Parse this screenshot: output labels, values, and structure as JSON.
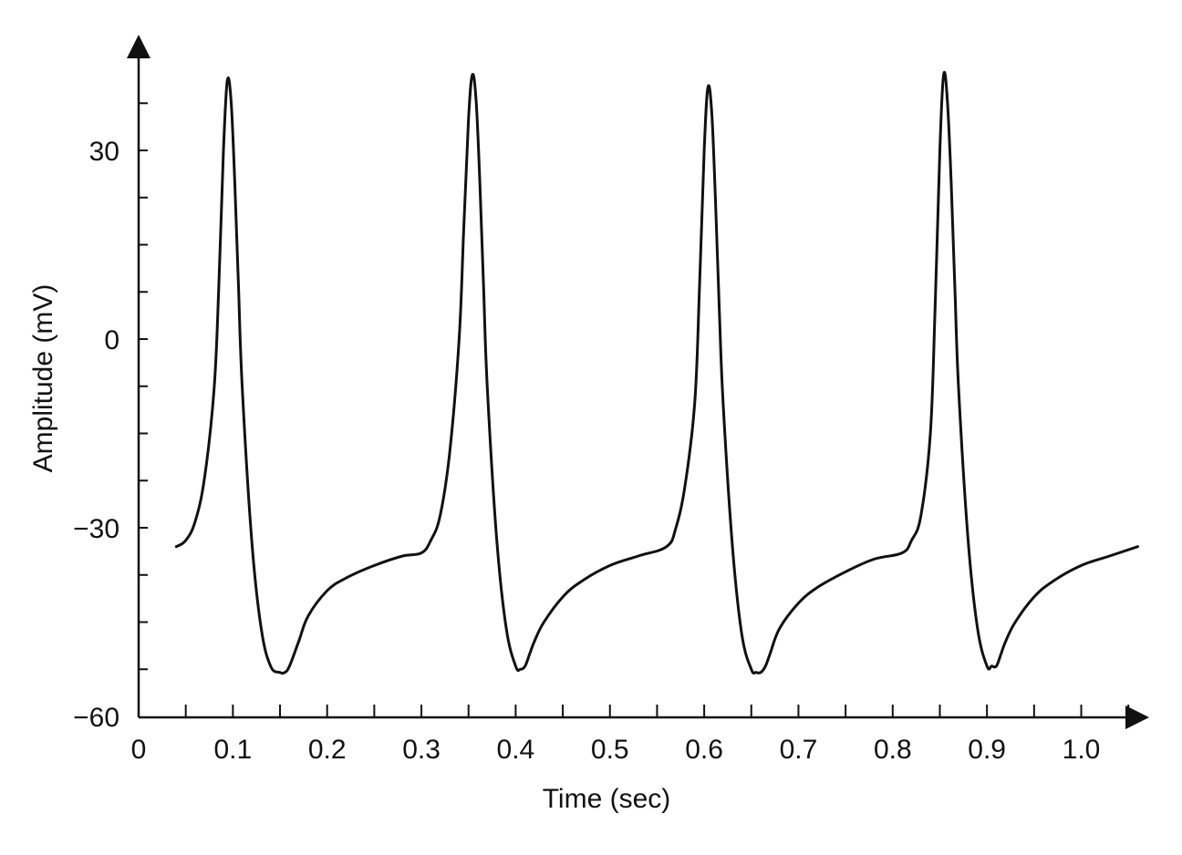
{
  "chart_data": {
    "type": "line",
    "title": "",
    "xlabel": "Time (sec)",
    "ylabel": "Amplitude (mV)",
    "xlim": [
      0,
      1.07
    ],
    "ylim": [
      -60,
      47
    ],
    "grid": false,
    "legend": "none",
    "line_color": "#111111",
    "x_ticks": [
      {
        "value": 0,
        "label": "0"
      },
      {
        "value": 0.1,
        "label": "0.1"
      },
      {
        "value": 0.2,
        "label": "0.2"
      },
      {
        "value": 0.3,
        "label": "0.3"
      },
      {
        "value": 0.4,
        "label": "0.4"
      },
      {
        "value": 0.5,
        "label": "0.5"
      },
      {
        "value": 0.6,
        "label": "0.6"
      },
      {
        "value": 0.7,
        "label": "0.7"
      },
      {
        "value": 0.8,
        "label": "0.8"
      },
      {
        "value": 0.9,
        "label": "0.9"
      },
      {
        "value": 1.0,
        "label": "1.0"
      }
    ],
    "x_minor_ticks": [
      0.05,
      0.15,
      0.25,
      0.35,
      0.45,
      0.55,
      0.65,
      0.75,
      0.85,
      0.95,
      1.05
    ],
    "y_ticks": [
      {
        "value": -60,
        "label": "−60"
      },
      {
        "value": -30,
        "label": "−30"
      },
      {
        "value": 0,
        "label": "0"
      },
      {
        "value": 30,
        "label": "30"
      }
    ],
    "y_minor_ticks": [
      -52.5,
      -45,
      -37.5,
      -22.5,
      -15,
      -7.5,
      7.5,
      15,
      22.5,
      37.5
    ],
    "series": [
      {
        "x": [
          0.04,
          0.05,
          0.06,
          0.07,
          0.08,
          0.085,
          0.09,
          0.094,
          0.098,
          0.102,
          0.106,
          0.11,
          0.12,
          0.13,
          0.14,
          0.15,
          0.155,
          0.16,
          0.17,
          0.18,
          0.2,
          0.22,
          0.25,
          0.28,
          0.3,
          0.31,
          0.32,
          0.33,
          0.34,
          0.345,
          0.35,
          0.354,
          0.358,
          0.362,
          0.366,
          0.37,
          0.38,
          0.39,
          0.4,
          0.405,
          0.41,
          0.415,
          0.42,
          0.43,
          0.45,
          0.47,
          0.5,
          0.53,
          0.56,
          0.57,
          0.58,
          0.59,
          0.595,
          0.6,
          0.604,
          0.608,
          0.612,
          0.616,
          0.62,
          0.63,
          0.64,
          0.65,
          0.655,
          0.66,
          0.665,
          0.67,
          0.68,
          0.7,
          0.72,
          0.75,
          0.78,
          0.81,
          0.82,
          0.83,
          0.84,
          0.845,
          0.85,
          0.854,
          0.858,
          0.862,
          0.866,
          0.87,
          0.88,
          0.89,
          0.9,
          0.905,
          0.91,
          0.915,
          0.92,
          0.93,
          0.95,
          0.97,
          1.0,
          1.03,
          1.06
        ],
        "y": [
          -33,
          -32,
          -29,
          -22,
          -8,
          8,
          30,
          41,
          38,
          25,
          8,
          -8,
          -32,
          -46,
          -52,
          -53,
          -53,
          -52,
          -48,
          -44,
          -40,
          -38,
          -36,
          -34.5,
          -34,
          -32,
          -28,
          -18,
          0,
          18,
          35,
          42,
          38,
          25,
          8,
          -8,
          -32,
          -46,
          -52,
          -52.5,
          -52,
          -50,
          -48,
          -45,
          -41,
          -38.5,
          -36,
          -34.5,
          -33,
          -30,
          -23,
          -10,
          8,
          30,
          40,
          36,
          22,
          5,
          -10,
          -33,
          -47,
          -52.5,
          -53,
          -53,
          -52,
          -50,
          -46,
          -42,
          -39.5,
          -37,
          -35,
          -34,
          -32,
          -28,
          -15,
          5,
          30,
          42,
          38,
          25,
          8,
          -8,
          -32,
          -46,
          -52,
          -52,
          -52,
          -50,
          -48,
          -45,
          -41,
          -38.5,
          -36,
          -34.5,
          -33
        ]
      }
    ]
  }
}
